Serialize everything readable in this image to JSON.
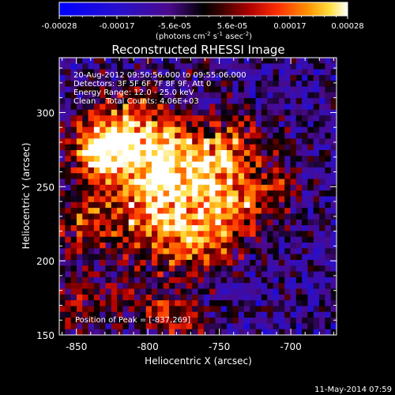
{
  "chart_data": {
    "type": "heatmap",
    "title": "Reconstructed RHESSI Image",
    "xlabel": "Heliocentric X (arcsec)",
    "ylabel": "Heliocentric Y (arcsec)",
    "xlim": [
      -862,
      -668
    ],
    "ylim": [
      150,
      337
    ],
    "x_ticks": [
      -850,
      -800,
      -750,
      -700
    ],
    "y_ticks": [
      150,
      200,
      250,
      300
    ],
    "colorbar": {
      "ticks": [
        "-0.00028",
        "-0.00017",
        "-5.6e-05",
        "5.6e-05",
        "0.00017",
        "0.00028"
      ],
      "unit_prefix": "(photons cm",
      "unit_sup1": "-2",
      "unit_mid1": " s",
      "unit_sup2": "-1",
      "unit_mid2": " asec",
      "unit_sup3": "-2",
      "unit_suffix": ")"
    },
    "annotations": {
      "time_range": "20-Aug-2012 09:50:56.000 to 09:55:06.000",
      "detectors": "Detectors: 3F 5F 6F 7F 8F 9F, Att 0",
      "energy_range": "Energy Range: 12.0 - 25.0 keV",
      "method_counts": "Clean    Total Counts: 4.06E+03",
      "peak": "Position of Peak = [-837,269]"
    },
    "intensity_field": {
      "grid_size": [
        48,
        48
      ],
      "blobs": [
        {
          "x": -835,
          "y": 275,
          "amplitude": 1.0,
          "width": 14
        },
        {
          "x": -812,
          "y": 290,
          "amplitude": 0.75,
          "width": 18
        },
        {
          "x": -800,
          "y": 255,
          "amplitude": 0.8,
          "width": 22
        },
        {
          "x": -770,
          "y": 270,
          "amplitude": 0.7,
          "width": 20
        },
        {
          "x": -745,
          "y": 245,
          "amplitude": 0.65,
          "width": 20
        },
        {
          "x": -735,
          "y": 280,
          "amplitude": 0.45,
          "width": 14
        },
        {
          "x": -790,
          "y": 220,
          "amplitude": 0.6,
          "width": 22
        },
        {
          "x": -760,
          "y": 215,
          "amplitude": 0.5,
          "width": 18
        },
        {
          "x": -845,
          "y": 225,
          "amplitude": 0.55,
          "width": 16
        },
        {
          "x": -850,
          "y": 170,
          "amplitude": 0.4,
          "width": 14
        },
        {
          "x": -820,
          "y": 175,
          "amplitude": 0.35,
          "width": 12
        },
        {
          "x": -790,
          "y": 165,
          "amplitude": 0.55,
          "width": 10
        },
        {
          "x": -770,
          "y": 160,
          "amplitude": 0.45,
          "width": 10
        },
        {
          "x": -720,
          "y": 240,
          "amplitude": 0.35,
          "width": 12
        },
        {
          "x": -700,
          "y": 255,
          "amplitude": 0.25,
          "width": 10
        }
      ],
      "base_level": -0.25,
      "noise_amplitude": 0.35,
      "value_range": [
        -0.7,
        1.0
      ]
    }
  },
  "footer": {
    "timestamp": "11-May-2014 07:59"
  }
}
